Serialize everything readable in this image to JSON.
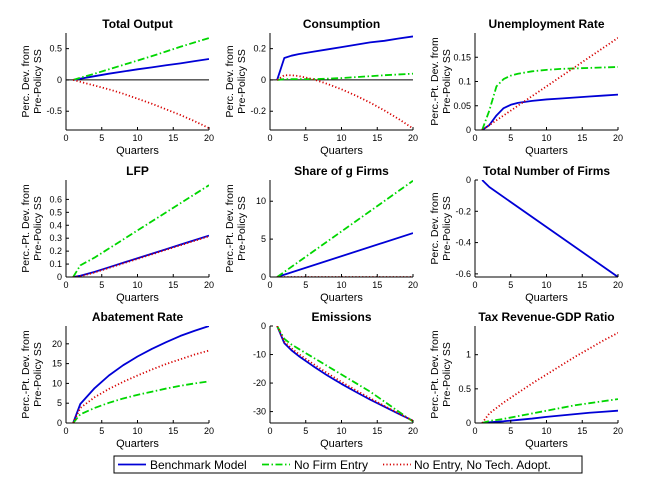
{
  "colors": {
    "benchmark": "#0000d6",
    "no_entry": "#00d600",
    "no_entry_tech": "#d60000"
  },
  "legend": {
    "items": [
      {
        "key": "benchmark",
        "label": "Benchmark Model",
        "style": "solid"
      },
      {
        "key": "no_entry",
        "label": "No Firm Entry",
        "style": "dashdot"
      },
      {
        "key": "no_entry_tech",
        "label": "No Entry, No Tech. Adopt.",
        "style": "dotted"
      }
    ]
  },
  "chart_data": [
    {
      "type": "line",
      "title": "Total Output",
      "xlabel": "Quarters",
      "ylabel": [
        "Perc. Dev. from",
        "Pre-Policy SS"
      ],
      "xlim": [
        0,
        20
      ],
      "ylim": [
        -0.8,
        0.75
      ],
      "xticks": [
        0,
        5,
        10,
        15,
        20
      ],
      "yticks": [
        -0.5,
        0,
        0.5
      ],
      "ytick_labels": [
        "-0.5",
        "0",
        "0.5"
      ],
      "zero_line": true,
      "x": [
        1,
        2,
        4,
        6,
        8,
        10,
        12,
        14,
        16,
        18,
        20
      ],
      "series": [
        {
          "key": "benchmark",
          "values": [
            0,
            0.02,
            0.06,
            0.1,
            0.135,
            0.17,
            0.2,
            0.235,
            0.265,
            0.3,
            0.335
          ]
        },
        {
          "key": "no_entry",
          "values": [
            0,
            0.035,
            0.1,
            0.17,
            0.24,
            0.31,
            0.38,
            0.455,
            0.53,
            0.6,
            0.67
          ]
        },
        {
          "key": "no_entry_tech",
          "values": [
            0,
            -0.03,
            -0.09,
            -0.15,
            -0.22,
            -0.3,
            -0.38,
            -0.47,
            -0.56,
            -0.66,
            -0.77
          ]
        }
      ]
    },
    {
      "type": "line",
      "title": "Consumption",
      "xlabel": "Quarters",
      "ylabel": [
        "Perc. Dev. from",
        "Pre-Policy SS"
      ],
      "xlim": [
        0,
        20
      ],
      "ylim": [
        -0.32,
        0.3
      ],
      "xticks": [
        0,
        5,
        10,
        15,
        20
      ],
      "yticks": [
        -0.2,
        0,
        0.2
      ],
      "ytick_labels": [
        "-0.2",
        "0",
        "0.2"
      ],
      "zero_line": true,
      "x": [
        1,
        2,
        3,
        4,
        6,
        8,
        10,
        12,
        14,
        16,
        18,
        20
      ],
      "series": [
        {
          "key": "benchmark",
          "values": [
            0,
            0.14,
            0.155,
            0.165,
            0.18,
            0.195,
            0.21,
            0.225,
            0.24,
            0.25,
            0.265,
            0.278
          ]
        },
        {
          "key": "no_entry",
          "values": [
            0,
            0.005,
            0.005,
            0.005,
            0.005,
            0.008,
            0.012,
            0.018,
            0.024,
            0.03,
            0.035,
            0.04
          ]
        },
        {
          "key": "no_entry_tech",
          "values": [
            0,
            0.03,
            0.03,
            0.025,
            0.005,
            -0.025,
            -0.06,
            -0.1,
            -0.145,
            -0.195,
            -0.25,
            -0.31
          ]
        }
      ]
    },
    {
      "type": "line",
      "title": "Unemployment Rate",
      "xlabel": "Quarters",
      "ylabel": [
        "Perc.-Pt. Dev. from",
        "Pre-Policy SS"
      ],
      "xlim": [
        0,
        20
      ],
      "ylim": [
        0,
        0.2
      ],
      "xticks": [
        0,
        5,
        10,
        15,
        20
      ],
      "yticks": [
        0,
        0.05,
        0.1,
        0.15
      ],
      "ytick_labels": [
        "0",
        "0.05",
        "0.1",
        "0.15"
      ],
      "zero_line": false,
      "x": [
        1,
        2,
        3,
        4,
        5,
        6,
        8,
        10,
        12,
        14,
        16,
        18,
        20
      ],
      "series": [
        {
          "key": "benchmark",
          "values": [
            0,
            0.01,
            0.03,
            0.045,
            0.052,
            0.056,
            0.06,
            0.063,
            0.065,
            0.067,
            0.069,
            0.071,
            0.073
          ]
        },
        {
          "key": "no_entry",
          "values": [
            0,
            0.04,
            0.09,
            0.105,
            0.112,
            0.116,
            0.121,
            0.124,
            0.126,
            0.127,
            0.128,
            0.129,
            0.13
          ]
        },
        {
          "key": "no_entry_tech",
          "values": [
            0,
            0.01,
            0.02,
            0.03,
            0.04,
            0.05,
            0.07,
            0.09,
            0.11,
            0.13,
            0.15,
            0.17,
            0.19
          ]
        }
      ]
    },
    {
      "type": "line",
      "title": "LFP",
      "xlabel": "Quarters",
      "ylabel": [
        "Perc.-Pt. Dev. from",
        "Pre-Policy SS"
      ],
      "xlim": [
        0,
        20
      ],
      "ylim": [
        0,
        0.75
      ],
      "xticks": [
        0,
        5,
        10,
        15,
        20
      ],
      "yticks": [
        0,
        0.1,
        0.2,
        0.3,
        0.4,
        0.5,
        0.6
      ],
      "ytick_labels": [
        "0",
        "0.1",
        "0.2",
        "0.3",
        "0.4",
        "0.5",
        "0.6"
      ],
      "zero_line": false,
      "x": [
        1,
        2,
        4,
        6,
        8,
        10,
        12,
        14,
        16,
        18,
        20
      ],
      "series": [
        {
          "key": "benchmark",
          "values": [
            0,
            0.01,
            0.04,
            0.075,
            0.11,
            0.145,
            0.18,
            0.215,
            0.25,
            0.285,
            0.32
          ]
        },
        {
          "key": "no_entry",
          "values": [
            0,
            0.09,
            0.15,
            0.22,
            0.29,
            0.36,
            0.43,
            0.5,
            0.57,
            0.64,
            0.71
          ]
        },
        {
          "key": "no_entry_tech",
          "values": [
            0,
            0.005,
            0.035,
            0.07,
            0.105,
            0.14,
            0.175,
            0.21,
            0.245,
            0.28,
            0.315
          ]
        }
      ]
    },
    {
      "type": "line",
      "title": "Share of g Firms",
      "xlabel": "Quarters",
      "ylabel": [
        "Perc.-Pt. Dev. from",
        "Pre-Policy SS"
      ],
      "xlim": [
        0,
        20
      ],
      "ylim": [
        0,
        12.8
      ],
      "xticks": [
        0,
        5,
        10,
        15,
        20
      ],
      "yticks": [
        0,
        5,
        10
      ],
      "ytick_labels": [
        "0",
        "5",
        "10"
      ],
      "zero_line": false,
      "x": [
        1,
        20
      ],
      "series": [
        {
          "key": "benchmark",
          "values": [
            0,
            5.8
          ]
        },
        {
          "key": "no_entry",
          "values": [
            0,
            12.7
          ]
        },
        {
          "key": "no_entry_tech",
          "values": [
            0,
            0
          ]
        }
      ]
    },
    {
      "type": "line",
      "title": "Total Number of Firms",
      "xlabel": "Quarters",
      "ylabel": [
        "Perc. Dev. from",
        "Pre-Policy SS"
      ],
      "xlim": [
        0,
        20
      ],
      "ylim": [
        -0.62,
        0
      ],
      "xticks": [
        0,
        5,
        10,
        15,
        20
      ],
      "yticks": [
        -0.6,
        -0.4,
        -0.2,
        0
      ],
      "ytick_labels": [
        "-0.6",
        "-0.4",
        "-0.2",
        "0"
      ],
      "zero_line": false,
      "x": [
        1,
        2,
        20
      ],
      "series": [
        {
          "key": "benchmark",
          "values": [
            0,
            -0.045,
            -0.62
          ]
        }
      ]
    },
    {
      "type": "line",
      "title": "Abatement Rate",
      "xlabel": "Quarters",
      "ylabel": [
        "Perc.-Pt. Dev. from",
        "Pre-Policy SS"
      ],
      "xlim": [
        0,
        20
      ],
      "ylim": [
        0,
        24.5
      ],
      "xticks": [
        0,
        5,
        10,
        15,
        20
      ],
      "yticks": [
        0,
        5,
        10,
        15,
        20
      ],
      "ytick_labels": [
        "0",
        "5",
        "10",
        "15",
        "20"
      ],
      "zero_line": false,
      "x": [
        1,
        2,
        4,
        6,
        8,
        10,
        12,
        14,
        16,
        18,
        20
      ],
      "series": [
        {
          "key": "benchmark",
          "values": [
            0,
            4.8,
            8.8,
            12,
            14.6,
            16.8,
            18.7,
            20.4,
            22,
            23.3,
            24.5
          ]
        },
        {
          "key": "no_entry",
          "values": [
            0,
            2.2,
            3.8,
            5.1,
            6.2,
            7.1,
            7.9,
            8.7,
            9.4,
            10,
            10.5
          ]
        },
        {
          "key": "no_entry_tech",
          "values": [
            0,
            3.8,
            6.5,
            8.6,
            10.4,
            12,
            13.5,
            14.9,
            16.1,
            17.3,
            18.3
          ]
        }
      ]
    },
    {
      "type": "line",
      "title": "Emissions",
      "xlabel": "Quarters",
      "ylabel": [],
      "xlim": [
        0,
        20
      ],
      "ylim": [
        -34,
        0
      ],
      "xticks": [
        0,
        5,
        10,
        15,
        20
      ],
      "yticks": [
        -30,
        -20,
        -10,
        0
      ],
      "ytick_labels": [
        "-30",
        "-20",
        "-10",
        "0"
      ],
      "zero_line": false,
      "x": [
        1,
        2,
        3,
        4,
        6,
        8,
        10,
        12,
        14,
        16,
        18,
        20
      ],
      "series": [
        {
          "key": "benchmark",
          "values": [
            0,
            -6,
            -8.5,
            -10.5,
            -14,
            -17.3,
            -20.3,
            -23.1,
            -25.8,
            -28.3,
            -30.8,
            -33.2
          ]
        },
        {
          "key": "no_entry",
          "values": [
            0,
            -4.5,
            -6.5,
            -8,
            -11,
            -14,
            -17,
            -20,
            -23,
            -26.5,
            -30,
            -33.5
          ]
        },
        {
          "key": "no_entry_tech",
          "values": [
            0,
            -5.5,
            -7.8,
            -9.8,
            -13.2,
            -16.5,
            -19.6,
            -22.5,
            -25.3,
            -28,
            -30.6,
            -33.2
          ]
        }
      ]
    },
    {
      "type": "line",
      "title": "Tax Revenue-GDP Ratio",
      "xlabel": "Quarters",
      "ylabel": [
        "Perc.-Pt. Dev. from",
        "Pre-Policy SS"
      ],
      "xlim": [
        0,
        20
      ],
      "ylim": [
        0,
        1.42
      ],
      "xticks": [
        0,
        5,
        10,
        15,
        20
      ],
      "yticks": [
        0,
        0.5,
        1
      ],
      "ytick_labels": [
        "0",
        "0.5",
        "1"
      ],
      "zero_line": false,
      "x": [
        1,
        2,
        4,
        6,
        8,
        10,
        12,
        14,
        16,
        18,
        20
      ],
      "series": [
        {
          "key": "benchmark",
          "values": [
            0,
            0.01,
            0.025,
            0.045,
            0.065,
            0.09,
            0.11,
            0.13,
            0.15,
            0.165,
            0.18
          ]
        },
        {
          "key": "no_entry",
          "values": [
            0,
            0.03,
            0.06,
            0.1,
            0.14,
            0.18,
            0.22,
            0.26,
            0.29,
            0.32,
            0.35
          ]
        },
        {
          "key": "no_entry_tech",
          "values": [
            0,
            0.14,
            0.3,
            0.44,
            0.58,
            0.71,
            0.84,
            0.97,
            1.09,
            1.21,
            1.32
          ]
        }
      ]
    }
  ]
}
